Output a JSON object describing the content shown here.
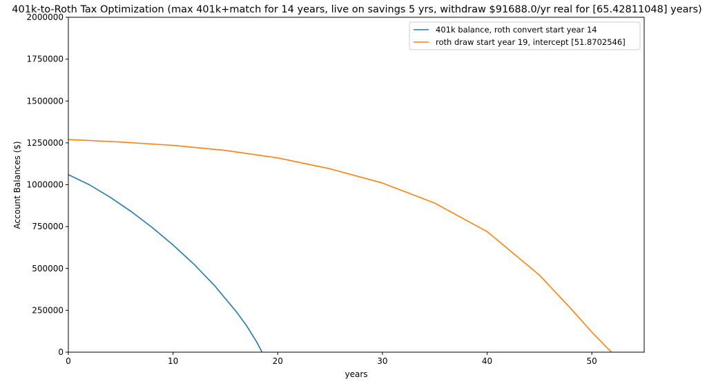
{
  "chart_data": {
    "type": "line",
    "title": "401k-to-Roth Tax Optimization (max 401k+match for 14 years, live on savings 5 yrs, withdraw $91688.0/yr real for [65.42811048] years)",
    "xlabel": "years",
    "ylabel": "Account Balances ($)",
    "xlim": [
      0,
      55
    ],
    "ylim": [
      0,
      2000000
    ],
    "xticks": [
      0,
      10,
      20,
      30,
      40,
      50
    ],
    "yticks": [
      0,
      250000,
      500000,
      750000,
      1000000,
      1250000,
      1500000,
      1750000,
      2000000
    ],
    "grid": false,
    "legend_position": "top-right",
    "series": [
      {
        "name": "401k balance, roth convert start year 14",
        "color": "#1f77b4",
        "x": [
          0,
          2,
          4,
          6,
          8,
          10,
          12,
          14,
          16,
          17,
          18,
          18.5
        ],
        "y": [
          1060000,
          1000000,
          925000,
          840000,
          745000,
          640000,
          525000,
          395000,
          245000,
          160000,
          60000,
          0
        ]
      },
      {
        "name": "roth draw start year 19, intercept [51.8702546]",
        "color": "#ff7f0e",
        "x": [
          0,
          5,
          10,
          15,
          20,
          25,
          30,
          35,
          40,
          45,
          48,
          50,
          51.87
        ],
        "y": [
          1270000,
          1255000,
          1235000,
          1205000,
          1160000,
          1095000,
          1010000,
          890000,
          720000,
          460000,
          260000,
          120000,
          0
        ]
      }
    ]
  }
}
